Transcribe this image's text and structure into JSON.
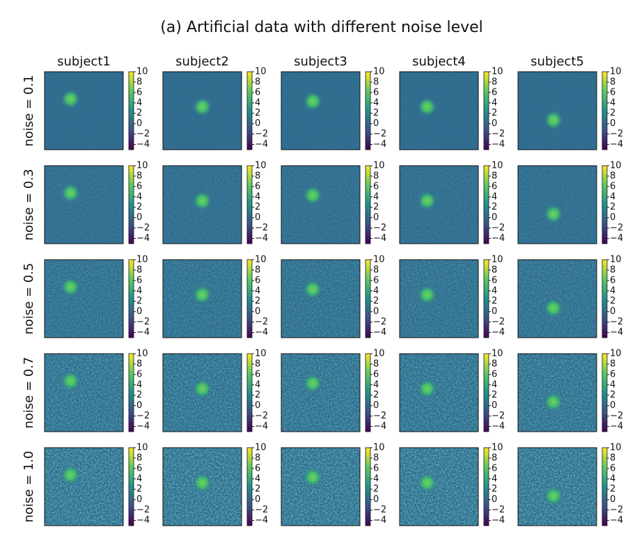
{
  "chart_data": {
    "type": "heatmap-grid",
    "title": "(a) Artificial data with different noise level",
    "columns": [
      "subject1",
      "subject2",
      "subject3",
      "subject4",
      "subject5"
    ],
    "rows": [
      {
        "label": "noise = 0.1",
        "value": 0.1
      },
      {
        "label": "noise = 0.3",
        "value": 0.3
      },
      {
        "label": "noise = 0.5",
        "value": 0.5
      },
      {
        "label": "noise = 0.7",
        "value": 0.7
      },
      {
        "label": "noise = 1.0",
        "value": 1.0
      }
    ],
    "centers": [
      [
        0.33,
        0.35
      ],
      [
        0.5,
        0.45
      ],
      [
        0.4,
        0.38
      ],
      [
        0.35,
        0.45
      ],
      [
        0.45,
        0.62
      ]
    ],
    "clim": [
      -5,
      10
    ],
    "cticks": [
      10,
      8,
      6,
      4,
      2,
      0,
      {
        "value": -2,
        "label": "−2"
      },
      {
        "value": -4,
        "label": "−4"
      }
    ]
  }
}
